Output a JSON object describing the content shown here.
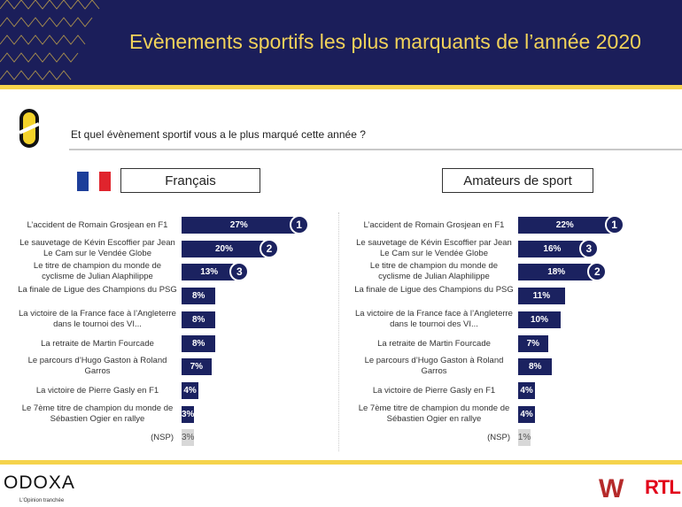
{
  "header": {
    "title": "Evènements sportifs les plus marquants de l’année 2020"
  },
  "question": "Et quel évènement sportif vous a le plus marqué cette année ?",
  "colors": {
    "navy": "#1b1e5a",
    "bar": "#1b2260",
    "yellow": "#f5d34c",
    "nsp": "#d8d8d8"
  },
  "chart_data": [
    {
      "type": "bar",
      "title": "Français",
      "unit": "%",
      "categories": [
        "L’accident de Romain Grosjean en F1",
        "Le sauvetage de Kévin Escoffier par Jean Le Cam sur le Vendée Globe",
        "Le titre de champion du monde de cyclisme de Julian Alaphilippe",
        "La finale de Ligue des Champions du PSG",
        "La victoire de la France face à l’Angleterre dans le tournoi des VI...",
        "La retraite de Martin Fourcade",
        "Le parcours d’Hugo Gaston à Roland Garros",
        "La victoire de Pierre Gasly en F1",
        "Le 7ème titre de champion du monde de Sébastien Ogier en rallye",
        "(NSP)"
      ],
      "values": [
        27,
        20,
        13,
        8,
        8,
        8,
        7,
        4,
        3,
        3
      ],
      "labels": [
        "27%",
        "20%",
        "13%",
        "8%",
        "8%",
        "8%",
        "7%",
        "4%",
        "3%",
        "3%"
      ],
      "ranks": [
        "1",
        "2",
        "3",
        null,
        null,
        null,
        null,
        null,
        null,
        null
      ]
    },
    {
      "type": "bar",
      "title": "Amateurs de sport",
      "unit": "%",
      "categories": [
        "L’accident de Romain Grosjean en F1",
        "Le sauvetage de Kévin Escoffier par Jean Le Cam sur le Vendée Globe",
        "Le titre de champion du monde de cyclisme de Julian Alaphilippe",
        "La finale de Ligue des Champions du PSG",
        "La victoire de la France face à l’Angleterre dans le tournoi des VI...",
        "La retraite de Martin Fourcade",
        "Le parcours d’Hugo Gaston à Roland Garros",
        "La victoire de Pierre Gasly en F1",
        "Le 7ème titre de champion du monde de Sébastien Ogier en rallye",
        "(NSP)"
      ],
      "values": [
        22,
        16,
        18,
        11,
        10,
        7,
        8,
        4,
        4,
        1
      ],
      "labels": [
        "22%",
        "16%",
        "18%",
        "11%",
        "10%",
        "7%",
        "8%",
        "4%",
        "4%",
        "1%"
      ],
      "ranks": [
        "1",
        "3",
        "2",
        null,
        null,
        null,
        null,
        null,
        null,
        null
      ]
    }
  ],
  "footer": {
    "brand": "ODOXA",
    "tagline": "L'Opinion tranchée",
    "partner1": "W",
    "partner2": "RTL"
  }
}
